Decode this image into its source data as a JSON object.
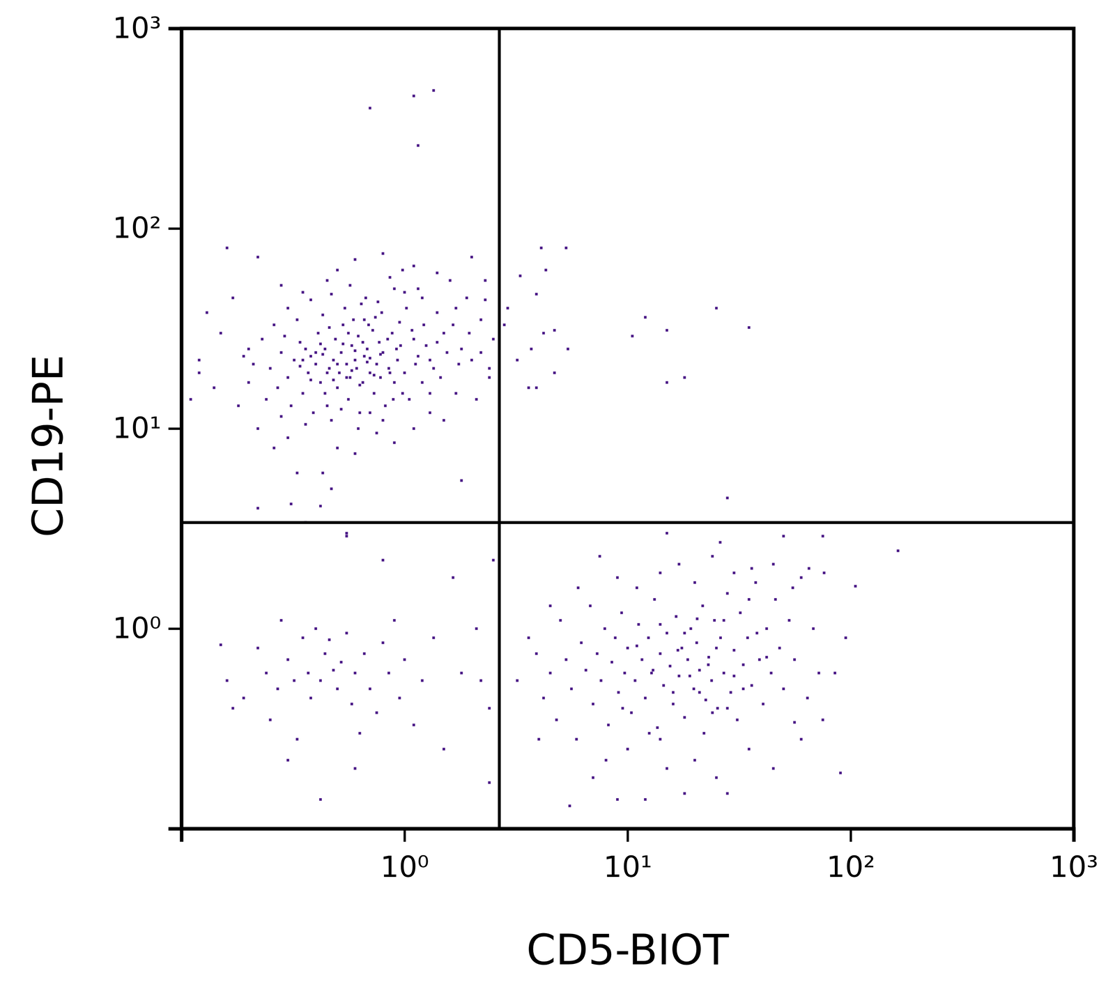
{
  "chart_data": {
    "type": "scatter",
    "x_label": "CD5-BIOT",
    "y_label": "CD19-PE",
    "log": true,
    "grid": false,
    "marker": "square",
    "color": "#4b1a87",
    "xlim": [
      0.1,
      1000
    ],
    "ylim": [
      0.1,
      1000
    ],
    "xticks": [
      {
        "value": 1,
        "label": "10⁰"
      },
      {
        "value": 10,
        "label": "10¹"
      },
      {
        "value": 100,
        "label": "10²"
      },
      {
        "value": 1000,
        "label": "10³"
      }
    ],
    "yticks": [
      {
        "value": 1,
        "label": "10⁰"
      },
      {
        "value": 10,
        "label": "10¹"
      },
      {
        "value": 100,
        "label": "10²"
      },
      {
        "value": 1000,
        "label": "10³"
      }
    ],
    "quadrant_gates": {
      "x": 2.66,
      "y": 3.39
    },
    "x": [
      0.7,
      1.1,
      1.35,
      1.15,
      4.1,
      5.3,
      4.3,
      3.3,
      3.9,
      2.9,
      2.8,
      3.2,
      3.7,
      4.2,
      4.7,
      5.4,
      4.7,
      3.6,
      3.9,
      12,
      10.5,
      15,
      25,
      35,
      18,
      15,
      28,
      0.16,
      0.22,
      0.28,
      0.17,
      0.13,
      0.12,
      0.11,
      0.12,
      0.15,
      0.2,
      0.14,
      0.18,
      0.22,
      0.26,
      0.3,
      0.33,
      0.22,
      0.31,
      0.36,
      0.42,
      0.43,
      0.47,
      0.55,
      0.6,
      0.5,
      0.75,
      0.9,
      1.8,
      1.1,
      1.3,
      1.5,
      1.7,
      2.1,
      2.4,
      2.5,
      2.2,
      1.9,
      1.6,
      1.4,
      1.1,
      0.8,
      0.6,
      0.5,
      0.45,
      0.35,
      0.9,
      1.2,
      2.0,
      2.3,
      1.7,
      1.4,
      1.5,
      1.8,
      2.0,
      1.3,
      0.25,
      0.28,
      0.3,
      0.32,
      0.34,
      0.35,
      0.37,
      0.38,
      0.4,
      0.41,
      0.42,
      0.44,
      0.45,
      0.46,
      0.48,
      0.49,
      0.5,
      0.51,
      0.52,
      0.53,
      0.55,
      0.56,
      0.57,
      0.58,
      0.6,
      0.61,
      0.62,
      0.63,
      0.65,
      0.66,
      0.68,
      0.7,
      0.72,
      0.73,
      0.75,
      0.77,
      0.78,
      0.8,
      0.82,
      0.85,
      0.88,
      0.9,
      0.93,
      0.96,
      1.0,
      1.05,
      1.1,
      1.15,
      1.2,
      0.27,
      0.29,
      0.31,
      0.33,
      0.36,
      0.39,
      0.43,
      0.47,
      0.54,
      0.59,
      0.64,
      0.69,
      0.74,
      0.79,
      0.84,
      0.89,
      0.95,
      1.02,
      1.08,
      1.25,
      1.35,
      1.45,
      1.55,
      1.65,
      1.75,
      0.2,
      0.21,
      0.23,
      0.24,
      0.19,
      0.26,
      0.3,
      0.38,
      0.47,
      0.57,
      0.67,
      0.76,
      0.86,
      1.0,
      0.7,
      0.8,
      0.62,
      0.52,
      0.44,
      0.36,
      0.28,
      0.48,
      0.58,
      0.68,
      0.78,
      0.53,
      0.63,
      0.73,
      0.43,
      0.38,
      0.56,
      0.66,
      0.46,
      0.34,
      0.42,
      0.6,
      0.5,
      0.55,
      0.65,
      0.7,
      0.45,
      0.4,
      0.35,
      0.86,
      0.92,
      0.98,
      1.12,
      1.22,
      1.3,
      1.4,
      2.2,
      2.4,
      2.3,
      1.95,
      1.15,
      0.98,
      0.15,
      0.16,
      0.17,
      0.19,
      0.22,
      0.24,
      0.25,
      0.27,
      0.28,
      0.3,
      0.32,
      0.33,
      0.35,
      0.37,
      0.38,
      0.4,
      0.42,
      0.44,
      0.46,
      0.48,
      0.5,
      0.52,
      0.55,
      0.58,
      0.6,
      0.63,
      0.66,
      0.7,
      0.75,
      0.8,
      0.85,
      0.9,
      0.95,
      1.0,
      1.1,
      1.2,
      1.35,
      1.5,
      1.65,
      1.8,
      2.1,
      2.4,
      2.5,
      0.55,
      0.8,
      0.6,
      0.42,
      0.3,
      2.4,
      2.2,
      3.2,
      3.6,
      3.9,
      4.2,
      4.5,
      4.8,
      5.0,
      5.3,
      5.6,
      5.9,
      6.2,
      6.5,
      6.8,
      7.0,
      7.3,
      7.6,
      7.9,
      8.2,
      8.5,
      8.8,
      9.1,
      9.4,
      9.7,
      10,
      10.4,
      10.8,
      11.2,
      11.6,
      12,
      12.4,
      12.8,
      13.2,
      13.6,
      14,
      14.5,
      15,
      15.5,
      16,
      16.5,
      17,
      17.5,
      18,
      18.6,
      19.2,
      19.8,
      20.4,
      21,
      21.7,
      22.4,
      23.1,
      23.8,
      24.5,
      25.3,
      26.1,
      27,
      28,
      29,
      30,
      31,
      32,
      33,
      34.5,
      36,
      37.5,
      39,
      40.5,
      42,
      44,
      46,
      48,
      50,
      53,
      56,
      60,
      64,
      68,
      72,
      76,
      85,
      95,
      105,
      163,
      56,
      60,
      45,
      35,
      25,
      20,
      15,
      12,
      9,
      7,
      5.5,
      18,
      28,
      22,
      14,
      10,
      8,
      11,
      14,
      17,
      20,
      24,
      30,
      36,
      45,
      55,
      65,
      75,
      50,
      15,
      9,
      6,
      4.5,
      7.5,
      26,
      16,
      19,
      23,
      13,
      21,
      25,
      18,
      14,
      27,
      33,
      38,
      42,
      11,
      9.5,
      16.8,
      20.5,
      24,
      30,
      12.5,
      35,
      28,
      90,
      75,
      4
    ],
    "values": [
      400,
      460,
      490,
      260,
      80,
      80,
      62,
      58,
      47,
      40,
      33,
      22,
      25,
      30,
      31,
      25,
      19,
      16,
      16,
      36,
      29,
      31,
      40,
      32,
      18,
      17,
      4.5,
      80,
      72,
      52,
      45,
      38,
      22,
      14,
      19,
      30,
      25,
      16,
      13,
      10,
      8,
      9,
      6,
      4,
      4.2,
      3.4,
      4.1,
      6,
      5,
      3,
      7.5,
      8,
      9.5,
      8.5,
      5.5,
      10,
      12,
      11,
      15,
      14,
      20,
      28,
      35,
      45,
      55,
      60,
      65,
      75,
      70,
      62,
      55,
      48,
      50,
      45,
      72,
      55,
      40,
      38,
      30,
      25,
      22,
      22,
      20,
      24,
      18,
      22,
      27,
      15,
      19,
      23,
      21,
      30,
      17,
      25,
      13,
      20,
      22,
      28,
      16,
      19,
      24,
      33,
      21,
      14,
      18,
      26,
      22,
      20,
      29,
      12,
      17,
      23,
      25,
      19,
      31,
      15,
      21,
      27,
      18,
      24,
      13,
      20,
      30,
      17,
      22,
      26,
      19,
      14,
      28,
      23,
      17,
      16,
      29,
      13,
      35,
      25,
      12,
      37,
      11,
      40,
      35,
      42,
      33,
      36,
      38,
      28,
      14,
      34,
      40,
      31,
      26,
      20,
      18,
      24,
      33,
      21,
      17,
      21,
      28,
      14,
      23,
      33,
      40,
      44,
      47,
      52,
      45,
      43,
      57,
      48,
      12,
      11,
      10,
      12.5,
      15,
      10.5,
      11.5,
      17.5,
      19.5,
      21.5,
      23.5,
      26.5,
      16.5,
      18.5,
      23.5,
      17.5,
      30,
      35,
      32,
      20.5,
      26.5,
      24.5,
      21,
      18,
      27,
      22.5,
      19,
      24,
      22,
      19,
      25,
      15,
      21,
      33,
      15,
      27,
      24,
      18,
      44,
      30,
      50,
      62,
      0.83,
      0.55,
      0.4,
      0.45,
      0.8,
      0.6,
      0.35,
      0.5,
      1.1,
      0.7,
      0.55,
      0.28,
      0.9,
      0.6,
      0.45,
      1.0,
      0.55,
      0.75,
      0.88,
      0.62,
      0.5,
      0.68,
      0.95,
      0.42,
      0.6,
      0.3,
      0.75,
      0.5,
      0.38,
      0.85,
      0.6,
      1.1,
      0.45,
      0.7,
      0.33,
      0.55,
      0.9,
      0.25,
      1.8,
      0.6,
      1.0,
      0.4,
      2.2,
      2.9,
      2.2,
      0.2,
      0.14,
      0.22,
      0.17,
      0.55,
      0.55,
      0.9,
      0.75,
      0.45,
      0.6,
      0.35,
      1.1,
      0.7,
      0.5,
      0.28,
      0.85,
      0.62,
      1.3,
      0.42,
      0.75,
      0.55,
      1.0,
      0.33,
      0.68,
      0.9,
      0.48,
      1.2,
      0.6,
      0.8,
      0.38,
      0.55,
      1.05,
      0.7,
      0.45,
      0.9,
      0.6,
      1.4,
      0.32,
      0.75,
      0.52,
      0.95,
      0.65,
      0.42,
      1.15,
      0.58,
      0.8,
      0.36,
      0.7,
      1.0,
      0.5,
      0.85,
      0.62,
      1.3,
      0.44,
      0.72,
      0.55,
      1.1,
      0.4,
      0.9,
      0.6,
      1.5,
      0.48,
      0.78,
      0.35,
      1.2,
      0.66,
      0.9,
      0.52,
      1.7,
      0.7,
      0.42,
      1.0,
      0.6,
      1.4,
      0.8,
      0.5,
      1.1,
      0.7,
      1.8,
      0.45,
      1.0,
      0.6,
      1.9,
      0.6,
      0.9,
      1.63,
      2.45,
      0.34,
      0.28,
      0.2,
      0.25,
      0.18,
      0.22,
      0.2,
      0.14,
      0.14,
      0.18,
      0.13,
      0.15,
      0.15,
      0.3,
      0.28,
      0.25,
      0.22,
      1.6,
      1.9,
      2.1,
      1.7,
      2.3,
      1.9,
      2.0,
      2.1,
      1.6,
      2.0,
      2.9,
      2.9,
      3.0,
      1.8,
      1.6,
      1.3,
      2.3,
      2.7,
      0.48,
      0.58,
      0.66,
      0.62,
      0.48,
      0.8,
      0.95,
      1.05,
      1.1,
      0.5,
      0.95,
      0.72,
      0.82,
      0.4,
      0.78,
      1.12,
      0.38,
      0.58,
      0.3,
      1.4,
      0.4,
      0.19,
      0.35,
      0.28
    ]
  }
}
